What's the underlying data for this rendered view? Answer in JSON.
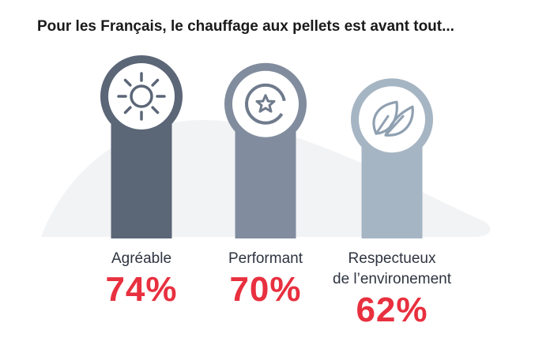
{
  "chart_data": {
    "type": "bar",
    "title": "Pour les Français, le chauffage aux pellets est avant tout...",
    "categories": [
      "Agréable",
      "Performant",
      "Respectueux de l'environement"
    ],
    "category_lines": [
      [
        "Agréable"
      ],
      [
        "Performant"
      ],
      [
        "Respectueux",
        "de l’environement"
      ]
    ],
    "values": [
      74,
      70,
      62
    ],
    "value_labels": [
      "74%",
      "70%",
      "62%"
    ],
    "unit": "%",
    "icons": [
      "sun-icon",
      "star-badge-icon",
      "leaves-icon"
    ],
    "colors": {
      "bars": [
        "#5b6677",
        "#818d9e",
        "#a6b5c3"
      ],
      "values": "#e8303f",
      "hill": "#f2f3f5"
    },
    "grid": false,
    "legend": "none"
  }
}
